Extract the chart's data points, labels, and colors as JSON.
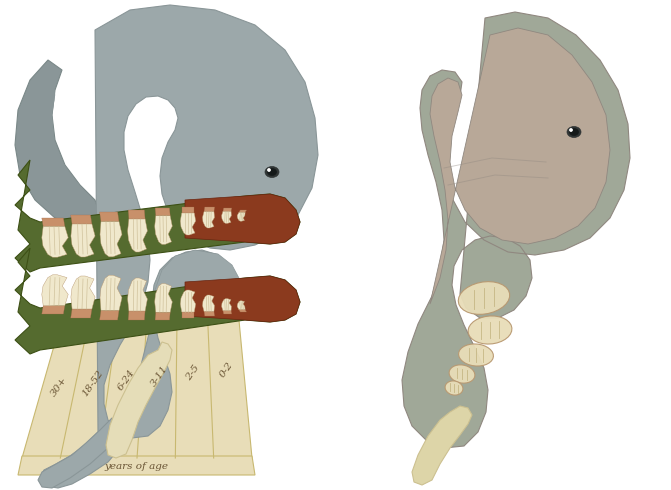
{
  "bg_color": "#ffffff",
  "elephant_gray": "#9ca8aa",
  "elephant_dark": "#8a9698",
  "elephant_light": "#adb8ba",
  "tusk_color": "#e5ddb8",
  "tusk_edge": "#ccc090",
  "jaw_green": "#556b2f",
  "jaw_red": "#8b3a1e",
  "jaw_gradient_mid": "#7a4020",
  "tooth_cream": "#f0e8cc",
  "tooth_cream2": "#e8ddb8",
  "tooth_pink": "#c8906a",
  "tooth_edge": "#b89870",
  "panel_bg": "#e8ddb8",
  "panel_line": "#c8b870",
  "age_labels": [
    "30+",
    "18-52",
    "6-24",
    "3-11",
    "2-5",
    "0-2"
  ],
  "age_color": "#6a5535",
  "years_label": "years of age",
  "right_elephant_gray": "#a0a898",
  "right_elephant_inner": "#b8a898",
  "right_elephant_dark": "#908880",
  "right_tooth_cream": "#e8ddb8",
  "right_tusk": "#ddd5a8"
}
